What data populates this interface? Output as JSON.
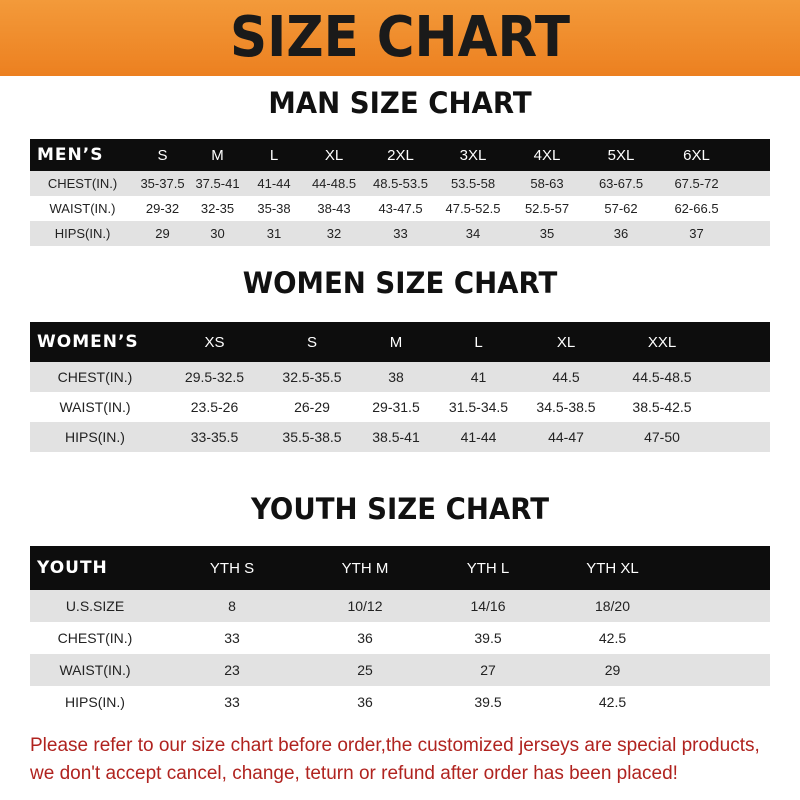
{
  "banner": {
    "title": "SIZE CHART",
    "color": "#ee8a2a"
  },
  "men": {
    "title": "MAN SIZE CHART",
    "header": "MEN’S",
    "sizes": [
      "S",
      "M",
      "L",
      "XL",
      "2XL",
      "3XL",
      "4XL",
      "5XL",
      "6XL"
    ],
    "rows": [
      {
        "label": "CHEST(IN.)",
        "values": [
          "35-37.5",
          "37.5-41",
          "41-44",
          "44-48.5",
          "48.5-53.5",
          "53.5-58",
          "58-63",
          "63-67.5",
          "67.5-72"
        ]
      },
      {
        "label": "WAIST(IN.)",
        "values": [
          "29-32",
          "32-35",
          "35-38",
          "38-43",
          "43-47.5",
          "47.5-52.5",
          "52.5-57",
          "57-62",
          "62-66.5"
        ]
      },
      {
        "label": "HIPS(IN.)",
        "values": [
          "29",
          "30",
          "31",
          "32",
          "33",
          "34",
          "35",
          "36",
          "37"
        ]
      }
    ]
  },
  "women": {
    "title": "WOMEN SIZE CHART",
    "header": "WOMEN’S",
    "sizes": [
      "XS",
      "S",
      "M",
      "L",
      "XL",
      "XXL"
    ],
    "rows": [
      {
        "label": "CHEST(IN.)",
        "values": [
          "29.5-32.5",
          "32.5-35.5",
          "38",
          "41",
          "44.5",
          "44.5-48.5"
        ]
      },
      {
        "label": "WAIST(IN.)",
        "values": [
          "23.5-26",
          "26-29",
          "29-31.5",
          "31.5-34.5",
          "34.5-38.5",
          "38.5-42.5"
        ]
      },
      {
        "label": "HIPS(IN.)",
        "values": [
          "33-35.5",
          "35.5-38.5",
          "38.5-41",
          "41-44",
          "44-47",
          "47-50"
        ]
      }
    ]
  },
  "youth": {
    "title": "YOUTH SIZE CHART",
    "header": "YOUTH",
    "sizes": [
      "YTH S",
      "YTH M",
      "YTH L",
      "YTH XL"
    ],
    "rows": [
      {
        "label": "U.S.SIZE",
        "values": [
          "8",
          "10/12",
          "14/16",
          "18/20"
        ]
      },
      {
        "label": "CHEST(IN.)",
        "values": [
          "33",
          "36",
          "39.5",
          "42.5"
        ]
      },
      {
        "label": "WAIST(IN.)",
        "values": [
          "23",
          "25",
          "27",
          "29"
        ]
      },
      {
        "label": "HIPS(IN.)",
        "values": [
          "33",
          "36",
          "39.5",
          "42.5"
        ]
      }
    ]
  },
  "note": {
    "line1": "Please refer to our size chart before order,the customized jerseys are special products,",
    "line2": "we don't accept cancel, change, teturn or refund after order has been placed!",
    "color": "#b0231f"
  }
}
